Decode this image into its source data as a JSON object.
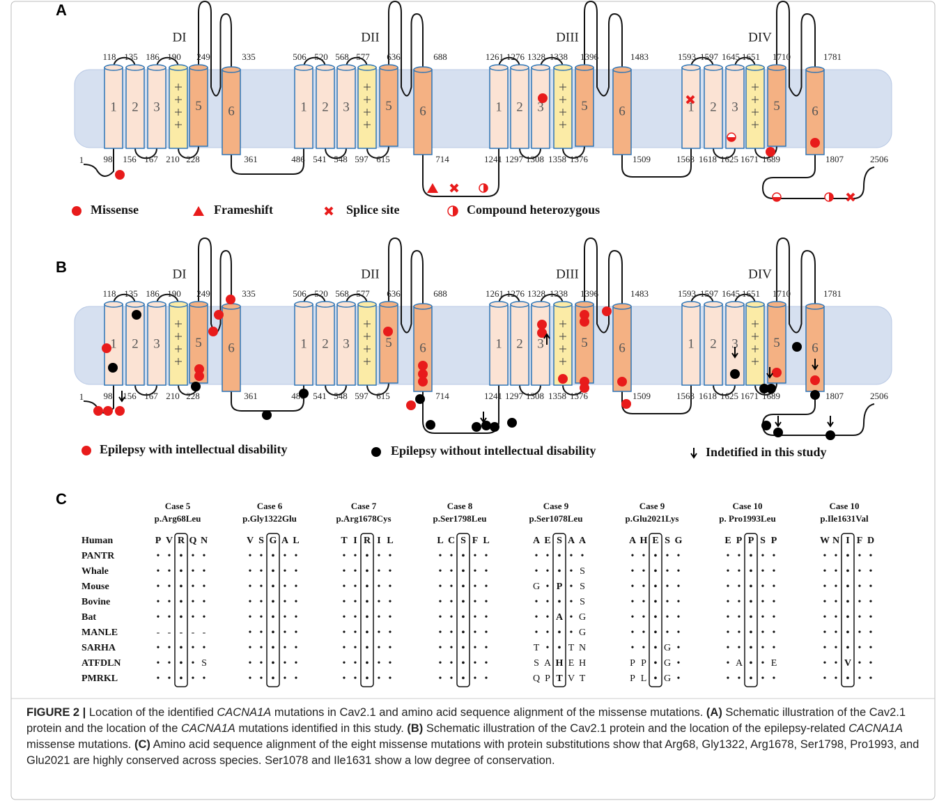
{
  "panels": {
    "a_label": "A",
    "b_label": "B",
    "c_label": "C"
  },
  "topology": {
    "segments": [
      "1",
      "2",
      "3",
      "5",
      "6"
    ],
    "n_terminus": "1",
    "c_terminus": "2506",
    "domains": [
      {
        "name": "DI",
        "top": [
          "118",
          "135",
          "186",
          "190",
          "249",
          "335"
        ],
        "bottom": [
          "98",
          "156",
          "167",
          "210",
          "228",
          "361"
        ]
      },
      {
        "name": "DII",
        "top": [
          "506",
          "520",
          "568",
          "577",
          "636",
          "688"
        ],
        "bottom": [
          "486",
          "541",
          "548",
          "597",
          "615",
          "714"
        ]
      },
      {
        "name": "DIII",
        "top": [
          "1261",
          "1276",
          "1328",
          "1338",
          "1396",
          "1483"
        ],
        "bottom": [
          "1241",
          "1297",
          "1308",
          "1358",
          "1376",
          "1509"
        ]
      },
      {
        "name": "DIV",
        "top": [
          "1593",
          "1597",
          "1645",
          "1651",
          "1710",
          "1781"
        ],
        "bottom": [
          "1563",
          "1618",
          "1625",
          "1671",
          "1689",
          "1807"
        ]
      }
    ]
  },
  "legend_a": [
    "Missense",
    "Frameshift",
    "Splice site",
    "Compound heterozygous"
  ],
  "legend_b": [
    "Epilepsy with intellectual disability",
    "Epilepsy without intellectual disability",
    "Indetified in this study"
  ],
  "alignment": {
    "species": [
      "Human",
      "PANTR",
      "Whale",
      "Mouse",
      "Bovine",
      "Bat",
      "MANLE",
      "SARHA",
      "ATFDLN",
      "PMRKL"
    ],
    "cases": [
      {
        "case": "Case 5",
        "mutation": "p.Arg68Leu",
        "rows": [
          [
            "P",
            "V",
            "R",
            "Q",
            "N"
          ],
          [
            "•",
            "•",
            "•",
            "•",
            "•"
          ],
          [
            "•",
            "•",
            "•",
            "•",
            "•"
          ],
          [
            "•",
            "•",
            "•",
            "•",
            "•"
          ],
          [
            "•",
            "•",
            "•",
            "•",
            "•"
          ],
          [
            "•",
            "•",
            "•",
            "•",
            "•"
          ],
          [
            "-",
            "-",
            "-",
            "-",
            "-"
          ],
          [
            "•",
            "•",
            "•",
            "•",
            "•"
          ],
          [
            "•",
            "•",
            "•",
            "•",
            "S"
          ],
          [
            "•",
            "•",
            "•",
            "•",
            "•"
          ]
        ]
      },
      {
        "case": "Case 6",
        "mutation": "p.Gly1322Glu",
        "rows": [
          [
            "V",
            "S",
            "G",
            "A",
            "L"
          ],
          [
            "•",
            "•",
            "•",
            "•",
            "•"
          ],
          [
            "•",
            "•",
            "•",
            "•",
            "•"
          ],
          [
            "•",
            "•",
            "•",
            "•",
            "•"
          ],
          [
            "•",
            "•",
            "•",
            "•",
            "•"
          ],
          [
            "•",
            "•",
            "•",
            "•",
            "•"
          ],
          [
            "•",
            "•",
            "•",
            "•",
            "•"
          ],
          [
            "•",
            "•",
            "•",
            "•",
            "•"
          ],
          [
            "•",
            "•",
            "•",
            "•",
            "•"
          ],
          [
            "•",
            "•",
            "•",
            "•",
            "•"
          ]
        ]
      },
      {
        "case": "Case 7",
        "mutation": "p.Arg1678Cys",
        "rows": [
          [
            "T",
            "I",
            "R",
            "I",
            "L"
          ],
          [
            "•",
            "•",
            "•",
            "•",
            "•"
          ],
          [
            "•",
            "•",
            "•",
            "•",
            "•"
          ],
          [
            "•",
            "•",
            "•",
            "•",
            "•"
          ],
          [
            "•",
            "•",
            "•",
            "•",
            "•"
          ],
          [
            "•",
            "•",
            "•",
            "•",
            "•"
          ],
          [
            "•",
            "•",
            "•",
            "•",
            "•"
          ],
          [
            "•",
            "•",
            "•",
            "•",
            "•"
          ],
          [
            "•",
            "•",
            "•",
            "•",
            "•"
          ],
          [
            "•",
            "•",
            "•",
            "•",
            "•"
          ]
        ]
      },
      {
        "case": "Case 8",
        "mutation": "p.Ser1798Leu",
        "rows": [
          [
            "L",
            "C",
            "S",
            "F",
            "L"
          ],
          [
            "•",
            "•",
            "•",
            "•",
            "•"
          ],
          [
            "•",
            "•",
            "•",
            "•",
            "•"
          ],
          [
            "•",
            "•",
            "•",
            "•",
            "•"
          ],
          [
            "•",
            "•",
            "•",
            "•",
            "•"
          ],
          [
            "•",
            "•",
            "•",
            "•",
            "•"
          ],
          [
            "•",
            "•",
            "•",
            "•",
            "•"
          ],
          [
            "•",
            "•",
            "•",
            "•",
            "•"
          ],
          [
            "•",
            "•",
            "•",
            "•",
            "•"
          ],
          [
            "•",
            "•",
            "•",
            "•",
            "•"
          ]
        ]
      },
      {
        "case": "Case 9",
        "mutation": "p.Ser1078Leu",
        "rows": [
          [
            "A",
            "E",
            "S",
            "A",
            "A"
          ],
          [
            "•",
            "•",
            "•",
            "•",
            "•"
          ],
          [
            "•",
            "•",
            "•",
            "•",
            "S"
          ],
          [
            "G",
            "•",
            "P",
            "•",
            "S"
          ],
          [
            "•",
            "•",
            "•",
            "•",
            "S"
          ],
          [
            "•",
            "•",
            "A",
            "•",
            "G"
          ],
          [
            "•",
            "•",
            "•",
            "•",
            "G"
          ],
          [
            "T",
            "•",
            "•",
            "T",
            "N"
          ],
          [
            "S",
            "A",
            "H",
            "E",
            "H"
          ],
          [
            "Q",
            "P",
            "T",
            "V",
            "T"
          ]
        ]
      },
      {
        "case": "Case 9",
        "mutation": "p.Glu2021Lys",
        "rows": [
          [
            "A",
            "H",
            "E",
            "S",
            "G"
          ],
          [
            "•",
            "•",
            "•",
            "•",
            "•"
          ],
          [
            "•",
            "•",
            "•",
            "•",
            "•"
          ],
          [
            "•",
            "•",
            "•",
            "•",
            "•"
          ],
          [
            "•",
            "•",
            "•",
            "•",
            "•"
          ],
          [
            "•",
            "•",
            "•",
            "•",
            "•"
          ],
          [
            "•",
            "•",
            "•",
            "•",
            "•"
          ],
          [
            "•",
            "•",
            "•",
            "G",
            "•"
          ],
          [
            "P",
            "P",
            "•",
            "G",
            "•"
          ],
          [
            "P",
            "L",
            "•",
            "G",
            "•"
          ]
        ]
      },
      {
        "case": "Case 10",
        "mutation": "p. Pro1993Leu",
        "rows": [
          [
            "E",
            "P",
            "P",
            "S",
            "P"
          ],
          [
            "•",
            "•",
            "•",
            "•",
            "•"
          ],
          [
            "•",
            "•",
            "•",
            "•",
            "•"
          ],
          [
            "•",
            "•",
            "•",
            "•",
            "•"
          ],
          [
            "•",
            "•",
            "•",
            "•",
            "•"
          ],
          [
            "•",
            "•",
            "•",
            "•",
            "•"
          ],
          [
            "•",
            "•",
            "•",
            "•",
            "•"
          ],
          [
            "•",
            "•",
            "•",
            "•",
            "•"
          ],
          [
            "•",
            "A",
            "•",
            "•",
            "E"
          ],
          [
            "•",
            "•",
            "•",
            "•",
            "•"
          ]
        ]
      },
      {
        "case": "Case 10",
        "mutation": "p.Ile1631Val",
        "rows": [
          [
            "W",
            "N",
            "I",
            "F",
            "D"
          ],
          [
            "•",
            "•",
            "•",
            "•",
            "•"
          ],
          [
            "•",
            "•",
            "•",
            "•",
            "•"
          ],
          [
            "•",
            "•",
            "•",
            "•",
            "•"
          ],
          [
            "•",
            "•",
            "•",
            "•",
            "•"
          ],
          [
            "•",
            "•",
            "•",
            "•",
            "•"
          ],
          [
            "•",
            "•",
            "•",
            "•",
            "•"
          ],
          [
            "•",
            "•",
            "•",
            "•",
            "•"
          ],
          [
            "•",
            "•",
            "V",
            "•",
            "•"
          ],
          [
            "•",
            "•",
            "•",
            "•",
            "•"
          ]
        ]
      }
    ]
  },
  "caption": [
    {
      "text": "FIGURE 2 |",
      "style": "bold"
    },
    {
      "text": " Location of the identified ",
      "style": "normal"
    },
    {
      "text": "CACNA1A",
      "style": "italic"
    },
    {
      "text": " mutations in Cav2.1 and amino acid sequence alignment of the missense mutations. ",
      "style": "normal"
    },
    {
      "text": "(A)",
      "style": "bold"
    },
    {
      "text": " Schematic illustration of the Cav2.1 protein and the location of the ",
      "style": "normal"
    },
    {
      "text": "CACNA1A",
      "style": "italic"
    },
    {
      "text": " mutations identified in this study. ",
      "style": "normal"
    },
    {
      "text": "(B)",
      "style": "bold"
    },
    {
      "text": " Schematic illustration of the Cav2.1 protein and the location of the epilepsy-related ",
      "style": "normal"
    },
    {
      "text": "CACNA1A",
      "style": "italic"
    },
    {
      "text": " missense mutations. ",
      "style": "normal"
    },
    {
      "text": "(C)",
      "style": "bold"
    },
    {
      "text": " Amino acid sequence alignment of the eight missense mutations with protein substitutions show that Arg68, Gly1322, Arg1678, Ser1798, Pro1993, and Glu2021 are highly conserved across species. Ser1078 and Ile1631 show a low degree of conservation.",
      "style": "normal"
    }
  ]
}
